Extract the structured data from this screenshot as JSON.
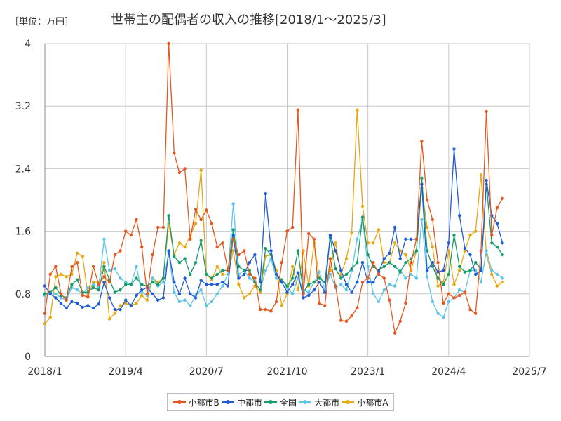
{
  "header": {
    "unit": "［単位：万円］",
    "title": "世帯主の配偶者の収入の推移[2018/1～2025/3]"
  },
  "colors": {
    "small_city_b": "#e8561d",
    "mid_city": "#1e5bd6",
    "national": "#159c6b",
    "big_city": "#5cc6e8",
    "small_city_a": "#e8a80e",
    "grid": "#c8c8c8",
    "axis": "#888888"
  },
  "chart_data": {
    "type": "line",
    "title": "世帯主の配偶者の収入の推移[2018/1～2025/3]",
    "ylabel": "万円",
    "xlabel": "",
    "ylim": [
      0,
      4
    ],
    "xlim_months": [
      0,
      90
    ],
    "x_start": "2018/1",
    "x_ticks": [
      {
        "label": "2018/1",
        "month": 0
      },
      {
        "label": "2019/4",
        "month": 15
      },
      {
        "label": "2020/7",
        "month": 30
      },
      {
        "label": "2021/10",
        "month": 45
      },
      {
        "label": "2023/1",
        "month": 60
      },
      {
        "label": "2024/4",
        "month": 75
      },
      {
        "label": "2025/7",
        "month": 90
      }
    ],
    "y_ticks": [
      {
        "label": "0",
        "value": 0
      },
      {
        "label": "0.8",
        "value": 0.8
      },
      {
        "label": "1.6",
        "value": 1.6
      },
      {
        "label": "2.4",
        "value": 2.4
      },
      {
        "label": "3.2",
        "value": 3.2
      },
      {
        "label": "4",
        "value": 4
      }
    ],
    "legend_position": "bottom",
    "series": [
      {
        "name": "小都市B",
        "key": "small_city_b",
        "values": [
          0.55,
          1.05,
          1.15,
          0.8,
          0.72,
          1.15,
          1.2,
          0.78,
          0.76,
          1.15,
          0.92,
          1.02,
          0.95,
          1.3,
          1.35,
          1.6,
          1.55,
          1.75,
          1.4,
          0.8,
          1.3,
          1.65,
          1.65,
          4.0,
          2.6,
          2.35,
          2.4,
          1.5,
          1.88,
          1.75,
          1.87,
          1.7,
          1.4,
          1.45,
          1.1,
          1.5,
          1.3,
          1.35,
          1.05,
          1.0,
          0.6,
          0.6,
          0.58,
          0.7,
          1.2,
          1.6,
          1.65,
          3.15,
          0.8,
          1.57,
          1.5,
          0.68,
          0.65,
          1.25,
          0.9,
          0.46,
          0.45,
          0.52,
          0.62,
          0.95,
          1.0,
          1.2,
          1.05,
          1.0,
          0.72,
          0.3,
          0.45,
          0.68,
          1.2,
          1.5,
          2.75,
          2.0,
          1.75,
          1.2,
          0.68,
          0.8,
          0.75,
          0.78,
          0.82,
          0.6,
          0.55,
          1.35,
          3.13,
          1.55,
          1.9,
          2.02
        ]
      },
      {
        "name": "中都市",
        "key": "mid_city",
        "values": [
          0.9,
          0.8,
          0.75,
          0.68,
          0.62,
          0.7,
          0.68,
          0.63,
          0.65,
          0.62,
          0.67,
          0.95,
          0.75,
          0.6,
          0.6,
          0.72,
          0.65,
          0.78,
          0.85,
          0.88,
          0.8,
          0.72,
          0.75,
          1.35,
          0.95,
          0.8,
          1.0,
          0.8,
          0.75,
          0.97,
          0.92,
          0.92,
          0.92,
          0.95,
          0.9,
          1.55,
          1.0,
          1.05,
          1.2,
          1.3,
          0.95,
          2.08,
          1.35,
          1.05,
          0.95,
          0.82,
          0.92,
          1.07,
          0.75,
          0.78,
          0.85,
          0.95,
          0.82,
          1.55,
          1.35,
          1.1,
          0.92,
          0.82,
          0.95,
          1.2,
          0.95,
          0.95,
          1.08,
          1.25,
          1.32,
          1.65,
          1.25,
          1.5,
          1.5,
          1.5,
          2.2,
          1.1,
          1.2,
          1.08,
          1.1,
          1.45,
          2.65,
          1.8,
          1.38,
          1.3,
          1.05,
          1.1,
          2.25,
          1.8,
          1.7,
          1.45
        ]
      },
      {
        "name": "全国",
        "key": "national",
        "values": [
          0.8,
          0.82,
          0.88,
          0.78,
          0.75,
          0.92,
          0.98,
          0.82,
          0.82,
          0.88,
          0.85,
          1.15,
          0.98,
          0.82,
          0.85,
          0.92,
          0.92,
          1.0,
          0.92,
          0.9,
          0.95,
          0.92,
          1.0,
          1.8,
          1.28,
          1.2,
          1.25,
          1.05,
          1.2,
          1.48,
          1.05,
          1.0,
          1.05,
          1.1,
          1.1,
          1.62,
          1.15,
          1.1,
          1.1,
          0.95,
          0.85,
          1.38,
          1.3,
          1.05,
          0.98,
          0.9,
          1.0,
          1.35,
          0.82,
          0.92,
          0.95,
          1.0,
          0.95,
          1.52,
          1.12,
          1.0,
          1.05,
          1.12,
          1.2,
          1.78,
          1.3,
          1.15,
          1.1,
          1.15,
          1.2,
          1.15,
          1.08,
          1.2,
          1.25,
          1.35,
          2.28,
          1.35,
          1.15,
          1.0,
          0.92,
          1.05,
          1.55,
          1.15,
          1.08,
          1.1,
          1.2,
          1.12,
          2.2,
          1.45,
          1.4,
          1.3
        ]
      },
      {
        "name": "大都市",
        "key": "big_city",
        "values": [
          0.78,
          0.82,
          0.8,
          0.75,
          0.72,
          0.88,
          0.85,
          0.8,
          0.88,
          0.92,
          0.88,
          1.5,
          1.1,
          1.12,
          1.0,
          0.95,
          0.92,
          1.15,
          0.82,
          0.78,
          1.0,
          0.9,
          0.95,
          1.32,
          0.82,
          0.7,
          0.72,
          0.65,
          0.78,
          0.85,
          0.65,
          0.7,
          0.8,
          0.9,
          1.05,
          1.95,
          1.05,
          1.1,
          1.0,
          0.95,
          0.85,
          1.1,
          1.25,
          1.0,
          0.98,
          0.88,
          0.8,
          1.0,
          0.85,
          0.82,
          0.95,
          1.08,
          0.85,
          1.05,
          0.88,
          0.92,
          0.85,
          1.1,
          1.5,
          1.75,
          1.15,
          0.8,
          0.7,
          0.85,
          0.92,
          0.9,
          1.1,
          1.0,
          1.05,
          1.0,
          1.75,
          1.02,
          0.7,
          0.55,
          0.5,
          0.7,
          0.75,
          0.85,
          0.82,
          1.1,
          1.1,
          0.95,
          1.35,
          1.1,
          1.05,
          1.0
        ]
      },
      {
        "name": "小都市A",
        "key": "small_city_a",
        "values": [
          0.42,
          0.5,
          1.02,
          1.05,
          1.02,
          1.05,
          1.32,
          1.28,
          0.78,
          0.95,
          0.95,
          1.2,
          0.48,
          0.55,
          0.65,
          0.68,
          0.65,
          0.68,
          0.78,
          0.72,
          1.0,
          0.95,
          1.0,
          1.7,
          1.3,
          1.45,
          1.4,
          1.55,
          1.7,
          2.38,
          1.05,
          0.98,
          1.15,
          1.05,
          1.05,
          1.35,
          0.92,
          0.75,
          0.8,
          0.9,
          0.82,
          1.28,
          1.3,
          1.1,
          0.65,
          0.8,
          1.15,
          0.85,
          1.35,
          0.9,
          1.45,
          1.0,
          0.95,
          1.1,
          1.45,
          1.05,
          1.25,
          1.58,
          3.15,
          1.92,
          1.45,
          1.45,
          1.62,
          1.2,
          1.2,
          1.45,
          1.35,
          1.3,
          1.1,
          1.35,
          2.15,
          1.65,
          1.4,
          0.9,
          0.95,
          1.35,
          0.92,
          1.1,
          1.35,
          1.55,
          1.6,
          2.32,
          1.3,
          1.05,
          0.9,
          0.95
        ]
      }
    ]
  }
}
